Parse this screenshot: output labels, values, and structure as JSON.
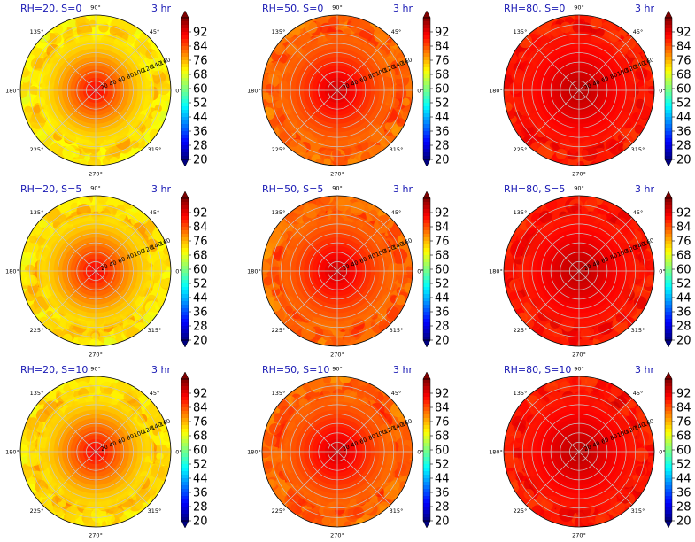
{
  "chart_data": [
    {
      "type": "heatmap",
      "title": "RH=20, S=0",
      "time_label": "3 hr",
      "rh": 20,
      "s": 0,
      "center_value": 94,
      "edge_value": 70,
      "levels": [
        20,
        28,
        36,
        44,
        52,
        60,
        68,
        76,
        84,
        92
      ]
    },
    {
      "type": "heatmap",
      "title": "RH=50, S=0",
      "time_label": "3 hr",
      "rh": 50,
      "s": 0,
      "center_value": 96,
      "edge_value": 81,
      "levels": [
        20,
        28,
        36,
        44,
        52,
        60,
        68,
        76,
        84,
        92
      ]
    },
    {
      "type": "heatmap",
      "title": "RH=80, S=0",
      "time_label": "3 hr",
      "rh": 80,
      "s": 0,
      "center_value": 97,
      "edge_value": 88,
      "levels": [
        20,
        28,
        36,
        44,
        52,
        60,
        68,
        76,
        84,
        92
      ]
    },
    {
      "type": "heatmap",
      "title": "RH=20, S=5",
      "time_label": "3 hr",
      "rh": 20,
      "s": 5,
      "center_value": 94,
      "edge_value": 71,
      "levels": [
        20,
        28,
        36,
        44,
        52,
        60,
        68,
        76,
        84,
        92
      ]
    },
    {
      "type": "heatmap",
      "title": "RH=50, S=5",
      "time_label": "3 hr",
      "rh": 50,
      "s": 5,
      "center_value": 96,
      "edge_value": 81,
      "levels": [
        20,
        28,
        36,
        44,
        52,
        60,
        68,
        76,
        84,
        92
      ]
    },
    {
      "type": "heatmap",
      "title": "RH=80, S=5",
      "time_label": "3 hr",
      "rh": 80,
      "s": 5,
      "center_value": 97,
      "edge_value": 88,
      "levels": [
        20,
        28,
        36,
        44,
        52,
        60,
        68,
        76,
        84,
        92
      ]
    },
    {
      "type": "heatmap",
      "title": "RH=20, S=10",
      "time_label": "3 hr",
      "rh": 20,
      "s": 10,
      "center_value": 94,
      "edge_value": 71,
      "levels": [
        20,
        28,
        36,
        44,
        52,
        60,
        68,
        76,
        84,
        92
      ]
    },
    {
      "type": "heatmap",
      "title": "RH=50, S=10",
      "time_label": "3 hr",
      "rh": 50,
      "s": 10,
      "center_value": 96,
      "edge_value": 81,
      "levels": [
        20,
        28,
        36,
        44,
        52,
        60,
        68,
        76,
        84,
        92
      ]
    },
    {
      "type": "heatmap",
      "title": "RH=80, S=10",
      "time_label": "3 hr",
      "rh": 80,
      "s": 10,
      "center_value": 97,
      "edge_value": 88,
      "levels": [
        20,
        28,
        36,
        44,
        52,
        60,
        68,
        76,
        84,
        92
      ]
    }
  ],
  "polar_axes": {
    "angle_labels": [
      "0°",
      "45°",
      "90°",
      "135°",
      "180°",
      "225°",
      "270°",
      "315°"
    ],
    "angle_degrees": [
      0,
      45,
      90,
      135,
      180,
      225,
      270,
      315
    ],
    "radial_ticks": [
      20,
      40,
      60,
      80,
      100,
      120,
      140,
      160
    ],
    "radial_range": [
      0,
      160
    ],
    "radial_label_angle_deg": 22.5,
    "grid": true
  },
  "colorbar": {
    "tick_labels": [
      "92",
      "84",
      "76",
      "68",
      "60",
      "52",
      "44",
      "36",
      "28",
      "20"
    ],
    "range": [
      20,
      100
    ],
    "colormap": "jet",
    "extend": "both"
  },
  "colors": {
    "title": "#1a1ab4",
    "grid": "#c8c8c8",
    "outline": "#000000"
  }
}
